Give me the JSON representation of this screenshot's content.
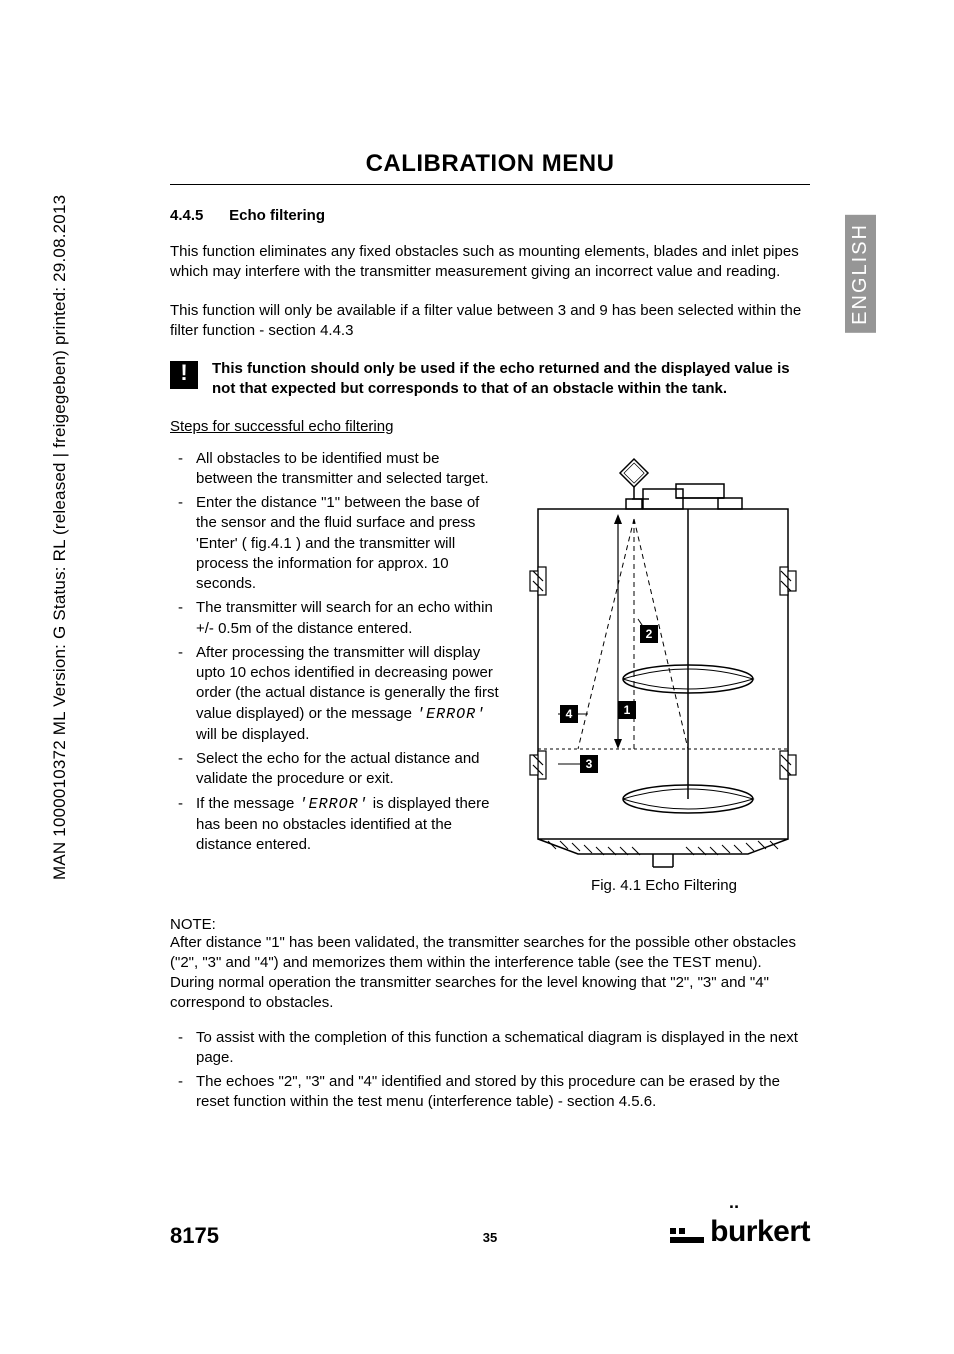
{
  "side_label": "MAN 1000010372 ML Version: G Status: RL (released | freigegeben) printed: 29.08.2013",
  "title": "CALIBRATION MENU",
  "section": {
    "num": "4.4.5",
    "name": "Echo filtering"
  },
  "para1": "This function eliminates any fixed obstacles such as mounting elements, blades and inlet pipes which may interfere with the transmitter measurement giving an incorrect value and reading.",
  "para2": "This function will only be available if a filter value between 3 and 9 has been selected within the filter function - section 4.4.3",
  "warning": "This function should only be used if the echo returned and the displayed value is not that expected but corresponds to that of an obstacle within the tank.",
  "steps_heading": "Steps for successful echo filtering",
  "steps": [
    "All obstacles to be identified must be between the transmitter and selected target.",
    "Enter the distance \"1\" between the base of the sensor and the fluid surface and press 'Enter' ( fig.4.1 ) and the transmitter will process the information for approx. 10 seconds.",
    "The transmitter will search for an echo within +/- 0.5m of the distance entered.",
    "After processing the transmitter will display upto 10 echos identified in decreasing power order (the actual distance is generally the first value displayed) or the message  'ERROR'  will be displayed.",
    "Select the echo for the actual distance and validate the procedure or exit.",
    "If the message  'ERROR'  is displayed there has been no obstacles identified at the distance entered."
  ],
  "fig_caption": "Fig.  4.1  Echo Filtering",
  "note_label": "NOTE:",
  "note_body": "After distance \"1\" has been validated, the transmitter searches for the possible other obstacles (\"2\", \"3\" and \"4\") and memorizes them within the interference table (see the TEST menu). During normal operation the transmitter searches for the level knowing that \"2\", \"3\" and \"4\" correspond to obstacles.",
  "notes_list": [
    "To assist with the completion of this function a schematical diagram is displayed in the next page.",
    "The echoes \"2\", \"3\" and \"4\" identified and stored by this procedure can be erased by the reset function within the test menu (interference table) - section 4.5.6."
  ],
  "lang_tab": "ENGLISH",
  "footer": {
    "model": "8175",
    "page": "35",
    "brand": "burkert"
  },
  "diagram": {
    "labels": {
      "1": "1",
      "2": "2",
      "3": "3",
      "4": "4"
    },
    "colors": {
      "stroke": "#000000",
      "hatch": "#000000",
      "label_bg": "#000000",
      "label_fg": "#ffffff"
    }
  }
}
